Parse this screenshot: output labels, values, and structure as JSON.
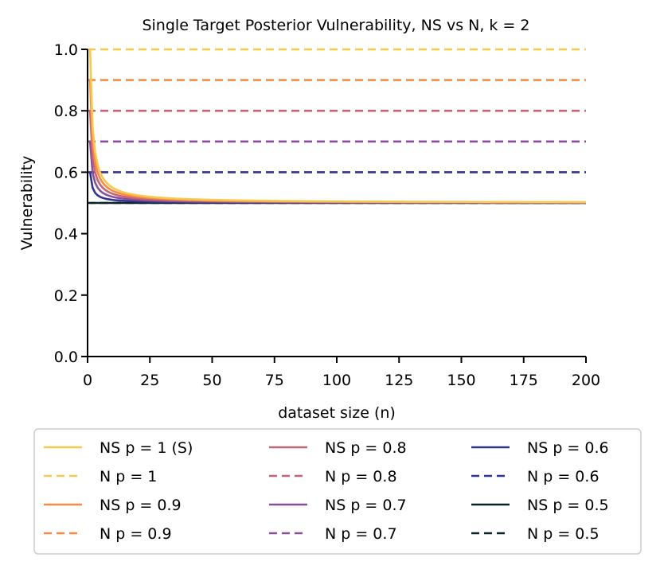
{
  "chart_data": {
    "type": "line",
    "title": "Single Target Posterior Vulnerability, NS vs N, k = 2",
    "xlabel": "dataset size (n)",
    "ylabel": "Vulnerability",
    "xlim": [
      0,
      200
    ],
    "ylim": [
      0,
      1.0
    ],
    "xticks": [
      0,
      25,
      50,
      75,
      100,
      125,
      150,
      175,
      200
    ],
    "yticks": [
      0.0,
      0.2,
      0.4,
      0.6,
      0.8,
      1.0
    ],
    "xtick_labels": [
      "0",
      "25",
      "50",
      "75",
      "100",
      "125",
      "150",
      "175",
      "200"
    ],
    "ytick_labels": [
      "0.0",
      "0.2",
      "0.4",
      "0.6",
      "0.8",
      "1.0"
    ],
    "grid": false,
    "legend_position": "below",
    "legend_columns": 3,
    "series_note": "NS curves follow V(n) = 0.5 + (p - 0.5)/n; N lines are constant at p",
    "series": [
      {
        "name": "NS p = 1 (S)",
        "p": 1.0,
        "kind": "NS",
        "style": "solid",
        "color": "#f6c84e"
      },
      {
        "name": "N p = 1",
        "p": 1.0,
        "kind": "N",
        "style": "dashed",
        "color": "#f6c84e"
      },
      {
        "name": "NS p = 0.9",
        "p": 0.9,
        "kind": "NS",
        "style": "solid",
        "color": "#f88a44"
      },
      {
        "name": "N p = 0.9",
        "p": 0.9,
        "kind": "N",
        "style": "dashed",
        "color": "#f88a44"
      },
      {
        "name": "NS p = 0.8",
        "p": 0.8,
        "kind": "NS",
        "style": "solid",
        "color": "#c46577"
      },
      {
        "name": "N p = 0.8",
        "p": 0.8,
        "kind": "N",
        "style": "dashed",
        "color": "#c46577"
      },
      {
        "name": "NS p = 0.7",
        "p": 0.7,
        "kind": "NS",
        "style": "solid",
        "color": "#8b4f98"
      },
      {
        "name": "N p = 0.7",
        "p": 0.7,
        "kind": "N",
        "style": "dashed",
        "color": "#8b4f98"
      },
      {
        "name": "NS p = 0.6",
        "p": 0.6,
        "kind": "NS",
        "style": "solid",
        "color": "#30358f"
      },
      {
        "name": "N p = 0.6",
        "p": 0.6,
        "kind": "N",
        "style": "dashed",
        "color": "#30358f"
      },
      {
        "name": "NS p = 0.5",
        "p": 0.5,
        "kind": "NS",
        "style": "solid",
        "color": "#0a2228"
      },
      {
        "name": "N p = 0.5",
        "p": 0.5,
        "kind": "N",
        "style": "dashed",
        "color": "#0a2228"
      }
    ]
  }
}
